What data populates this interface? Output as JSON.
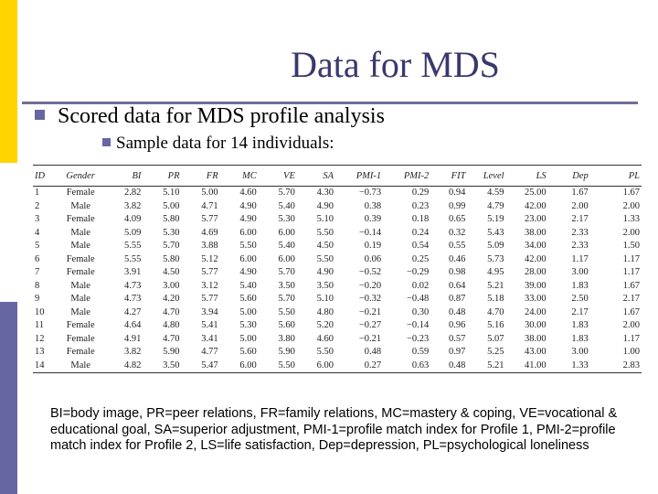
{
  "slide": {
    "title": "Data for MDS",
    "bullet1": "Scored data for MDS profile analysis",
    "bullet2": "Sample data for 14 individuals:",
    "accent_colors": {
      "yellow": "#ffd400",
      "purple": "#6666a3",
      "title": "#39396e"
    }
  },
  "table": {
    "headers": [
      "ID",
      "Gender",
      "BI",
      "PR",
      "FR",
      "MC",
      "VE",
      "SA",
      "PMI-1",
      "PMI-2",
      "FIT",
      "Level",
      "LS",
      "Dep",
      "PL"
    ],
    "rows": [
      [
        "1",
        "Female",
        "2.82",
        "5.10",
        "5.00",
        "4.60",
        "5.70",
        "4.30",
        "−0.73",
        "0.29",
        "0.94",
        "4.59",
        "25.00",
        "1.67",
        "1.67"
      ],
      [
        "2",
        "Male",
        "3.82",
        "5.00",
        "4.71",
        "4.90",
        "5.40",
        "4.90",
        "0.38",
        "0.23",
        "0.99",
        "4.79",
        "42.00",
        "2.00",
        "2.00"
      ],
      [
        "3",
        "Female",
        "4.09",
        "5.80",
        "5.77",
        "4.90",
        "5.30",
        "5.10",
        "0.39",
        "0.18",
        "0.65",
        "5.19",
        "23.00",
        "2.17",
        "1.33"
      ],
      [
        "4",
        "Male",
        "5.09",
        "5.30",
        "4.69",
        "6.00",
        "6.00",
        "5.50",
        "−0.14",
        "0.24",
        "0.32",
        "5.43",
        "38.00",
        "2.33",
        "2.00"
      ],
      [
        "5",
        "Male",
        "5.55",
        "5.70",
        "3.88",
        "5.50",
        "5.40",
        "4.50",
        "0.19",
        "0.54",
        "0.55",
        "5.09",
        "34.00",
        "2.33",
        "1.50"
      ],
      [
        "6",
        "Female",
        "5.55",
        "5.80",
        "5.12",
        "6.00",
        "6.00",
        "5.50",
        "0.06",
        "0.25",
        "0.46",
        "5.73",
        "42.00",
        "1.17",
        "1.17"
      ],
      [
        "7",
        "Female",
        "3.91",
        "4.50",
        "5.77",
        "4.90",
        "5.70",
        "4.90",
        "−0.52",
        "−0.29",
        "0.98",
        "4.95",
        "28.00",
        "3.00",
        "1.17"
      ],
      [
        "8",
        "Male",
        "4.73",
        "3.00",
        "3.12",
        "5.40",
        "3.50",
        "3.50",
        "−0.20",
        "0.02",
        "0.64",
        "5.21",
        "39.00",
        "1.83",
        "1.67"
      ],
      [
        "9",
        "Male",
        "4.73",
        "4.20",
        "5.77",
        "5.60",
        "5.70",
        "5.10",
        "−0.32",
        "−0.48",
        "0.87",
        "5.18",
        "33.00",
        "2.50",
        "2.17"
      ],
      [
        "10",
        "Male",
        "4.27",
        "4.70",
        "3.94",
        "5.00",
        "5.50",
        "4.80",
        "−0.21",
        "0.30",
        "0.48",
        "4.70",
        "24.00",
        "2.17",
        "1.67"
      ],
      [
        "11",
        "Female",
        "4.64",
        "4.80",
        "5.41",
        "5.30",
        "5.60",
        "5.20",
        "−0.27",
        "−0.14",
        "0.96",
        "5.16",
        "30.00",
        "1.83",
        "2.00"
      ],
      [
        "12",
        "Female",
        "4.91",
        "4.70",
        "3.41",
        "5.00",
        "3.80",
        "4.60",
        "−0.21",
        "−0.23",
        "0.57",
        "5.07",
        "38.00",
        "1.83",
        "1.17"
      ],
      [
        "13",
        "Female",
        "3.82",
        "5.90",
        "4.77",
        "5.60",
        "5.90",
        "5.50",
        "0.48",
        "0.59",
        "0.97",
        "5.25",
        "43.00",
        "3.00",
        "1.00"
      ],
      [
        "14",
        "Male",
        "4.82",
        "3.50",
        "5.47",
        "6.00",
        "5.50",
        "6.00",
        "0.27",
        "0.63",
        "0.48",
        "5.21",
        "41.00",
        "1.33",
        "2.83"
      ]
    ]
  },
  "footnote": "BI=body image, PR=peer relations, FR=family relations, MC=mastery & coping, VE=vocational & educational goal, SA=superior adjustment, PMI-1=profile match index for Profile 1, PMI-2=profile match index for Profile 2, LS=life satisfaction, Dep=depression, PL=psychological loneliness"
}
